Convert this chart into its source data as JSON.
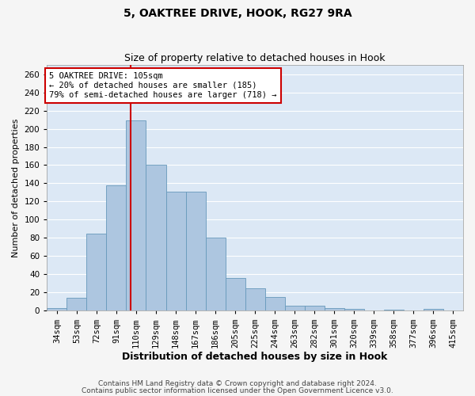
{
  "title1": "5, OAKTREE DRIVE, HOOK, RG27 9RA",
  "title2": "Size of property relative to detached houses in Hook",
  "xlabel": "Distribution of detached houses by size in Hook",
  "ylabel": "Number of detached properties",
  "categories": [
    "34sqm",
    "53sqm",
    "72sqm",
    "91sqm",
    "110sqm",
    "129sqm",
    "148sqm",
    "167sqm",
    "186sqm",
    "205sqm",
    "225sqm",
    "244sqm",
    "263sqm",
    "282sqm",
    "301sqm",
    "320sqm",
    "339sqm",
    "358sqm",
    "377sqm",
    "396sqm",
    "415sqm"
  ],
  "values": [
    3,
    14,
    85,
    138,
    209,
    160,
    131,
    131,
    80,
    36,
    25,
    15,
    6,
    6,
    3,
    2,
    0,
    1,
    0,
    2,
    0
  ],
  "bar_color": "#adc6e0",
  "bar_edge_color": "#6699bb",
  "bar_width": 1.0,
  "vline_color": "#cc0000",
  "annotation_text": "5 OAKTREE DRIVE: 105sqm\n← 20% of detached houses are smaller (185)\n79% of semi-detached houses are larger (718) →",
  "annotation_box_color": "#ffffff",
  "annotation_box_edgecolor": "#cc0000",
  "ylim": [
    0,
    270
  ],
  "yticks": [
    0,
    20,
    40,
    60,
    80,
    100,
    120,
    140,
    160,
    180,
    200,
    220,
    240,
    260
  ],
  "background_color": "#dce8f5",
  "grid_color": "#ffffff",
  "footer1": "Contains HM Land Registry data © Crown copyright and database right 2024.",
  "footer2": "Contains public sector information licensed under the Open Government Licence v3.0.",
  "title1_fontsize": 10,
  "title2_fontsize": 9,
  "ylabel_fontsize": 8,
  "xlabel_fontsize": 9,
  "tick_fontsize": 7.5,
  "footer_fontsize": 6.5,
  "fig_bg_color": "#f5f5f5"
}
